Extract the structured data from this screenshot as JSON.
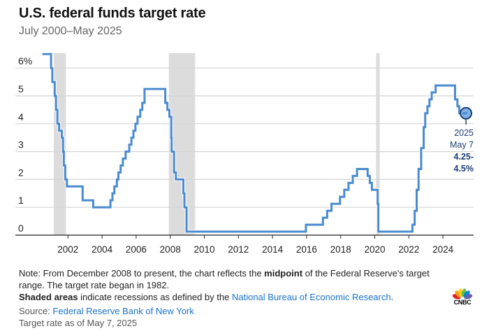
{
  "header": {
    "title": "U.S. federal funds target rate",
    "subtitle": "July 2000–May 2025"
  },
  "colors": {
    "line": "#4a8bd0",
    "recession": "#dcdcdc",
    "grid": "#d4d4d4",
    "axis": "#222222",
    "annotation": "#1c3f73",
    "link": "#1a73c9"
  },
  "chart_data": {
    "type": "line",
    "step": true,
    "title": "U.S. federal funds target rate",
    "subtitle": "July 2000–May 2025",
    "xlabel": "",
    "ylabel": "",
    "ylim": [
      0,
      6.5
    ],
    "xlim": [
      2000.0,
      2025.8
    ],
    "grid": true,
    "y_ticks": [
      {
        "value": 0,
        "label": "0"
      },
      {
        "value": 1,
        "label": "1"
      },
      {
        "value": 2,
        "label": "2"
      },
      {
        "value": 3,
        "label": "3"
      },
      {
        "value": 4,
        "label": "4"
      },
      {
        "value": 5,
        "label": "5"
      },
      {
        "value": 6,
        "label": "6%"
      }
    ],
    "x_ticks": [
      {
        "value": 2002,
        "label": "2002"
      },
      {
        "value": 2004,
        "label": "2004"
      },
      {
        "value": 2006,
        "label": "2006"
      },
      {
        "value": 2008,
        "label": "2008"
      },
      {
        "value": 2010,
        "label": "2010"
      },
      {
        "value": 2012,
        "label": "2012"
      },
      {
        "value": 2014,
        "label": "2014"
      },
      {
        "value": 2016,
        "label": "2016"
      },
      {
        "value": 2018,
        "label": "2018"
      },
      {
        "value": 2020,
        "label": "2020"
      },
      {
        "value": 2022,
        "label": "2022"
      },
      {
        "value": 2024,
        "label": "2024"
      }
    ],
    "recessions": [
      {
        "start": 2001.17,
        "end": 2001.88
      },
      {
        "start": 2007.92,
        "end": 2009.46
      },
      {
        "start": 2020.08,
        "end": 2020.29
      }
    ],
    "series": [
      {
        "name": "Federal funds target rate (%)",
        "points": [
          [
            2000.5,
            6.5
          ],
          [
            2001.01,
            6.0
          ],
          [
            2001.08,
            5.5
          ],
          [
            2001.22,
            5.0
          ],
          [
            2001.3,
            4.5
          ],
          [
            2001.38,
            4.0
          ],
          [
            2001.48,
            3.75
          ],
          [
            2001.64,
            3.5
          ],
          [
            2001.71,
            3.0
          ],
          [
            2001.76,
            2.5
          ],
          [
            2001.84,
            2.0
          ],
          [
            2001.94,
            1.75
          ],
          [
            2002.86,
            1.25
          ],
          [
            2003.48,
            1.0
          ],
          [
            2004.49,
            1.25
          ],
          [
            2004.61,
            1.5
          ],
          [
            2004.72,
            1.75
          ],
          [
            2004.87,
            2.0
          ],
          [
            2004.96,
            2.25
          ],
          [
            2005.09,
            2.5
          ],
          [
            2005.22,
            2.75
          ],
          [
            2005.38,
            3.0
          ],
          [
            2005.6,
            3.25
          ],
          [
            2005.72,
            3.5
          ],
          [
            2005.84,
            3.75
          ],
          [
            2005.96,
            4.0
          ],
          [
            2006.08,
            4.25
          ],
          [
            2006.24,
            4.5
          ],
          [
            2006.36,
            4.75
          ],
          [
            2006.49,
            5.25
          ],
          [
            2007.71,
            4.75
          ],
          [
            2007.83,
            4.5
          ],
          [
            2007.95,
            4.25
          ],
          [
            2008.06,
            3.5
          ],
          [
            2008.08,
            3.0
          ],
          [
            2008.22,
            2.25
          ],
          [
            2008.33,
            2.0
          ],
          [
            2008.77,
            1.5
          ],
          [
            2008.83,
            1.0
          ],
          [
            2008.96,
            0.125
          ],
          [
            2015.96,
            0.375
          ],
          [
            2016.96,
            0.625
          ],
          [
            2017.21,
            0.875
          ],
          [
            2017.46,
            1.125
          ],
          [
            2017.96,
            1.375
          ],
          [
            2018.21,
            1.625
          ],
          [
            2018.46,
            1.875
          ],
          [
            2018.71,
            2.125
          ],
          [
            2018.96,
            2.375
          ],
          [
            2019.58,
            2.125
          ],
          [
            2019.71,
            1.875
          ],
          [
            2019.83,
            1.625
          ],
          [
            2020.17,
            1.125
          ],
          [
            2020.21,
            0.125
          ],
          [
            2022.21,
            0.375
          ],
          [
            2022.34,
            0.875
          ],
          [
            2022.46,
            1.625
          ],
          [
            2022.57,
            2.375
          ],
          [
            2022.72,
            3.125
          ],
          [
            2022.87,
            3.875
          ],
          [
            2022.96,
            4.375
          ],
          [
            2023.09,
            4.625
          ],
          [
            2023.21,
            4.875
          ],
          [
            2023.34,
            5.125
          ],
          [
            2023.57,
            5.375
          ],
          [
            2024.71,
            4.875
          ],
          [
            2024.85,
            4.625
          ],
          [
            2024.96,
            4.375
          ],
          [
            2025.35,
            4.375
          ]
        ]
      }
    ],
    "annotation": {
      "x": 2025.35,
      "y": 4.375,
      "lines": [
        "2025",
        "May 7",
        "4.25-",
        "4.5%"
      ]
    }
  },
  "footer": {
    "note_prefix": "Note: From December 2008 to present, the chart reflects the ",
    "note_bold": "midpoint",
    "note_suffix": " of the Federal Reserve's target range. The target rate began in 1982.",
    "shaded_bold": "Shaded areas",
    "shaded_text": " indicate recessions as defined by the ",
    "shaded_link": "National Bureau of Economic Research",
    "shaded_end": ".",
    "source_label": "Source: ",
    "source_link": "Federal Reserve Bank of New York",
    "as_of": "Target rate as of May 7, 2025"
  },
  "logo": {
    "text": "CNBC",
    "peacock_colors": [
      "#e51b24",
      "#f89b1c",
      "#fcd116",
      "#6ebe44",
      "#0089cf",
      "#6460aa"
    ]
  }
}
